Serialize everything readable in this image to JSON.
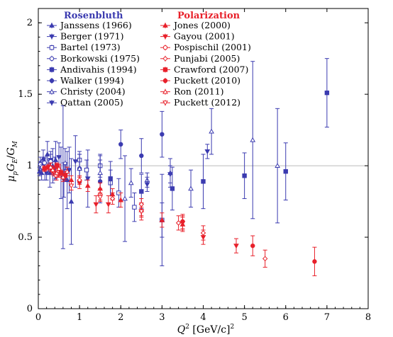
{
  "chart_data": {
    "type": "scatter",
    "xlabel": "Q² [GeV/c]²",
    "ylabel": "μpGE/GM",
    "xlim": [
      0,
      8
    ],
    "ylim": [
      0,
      2.1
    ],
    "xticks": [
      "0",
      "1",
      "2",
      "3",
      "4",
      "5",
      "6",
      "7",
      "8"
    ],
    "yticks": [
      "0",
      "0.5",
      "1",
      "1.5",
      "2"
    ],
    "reference_line": 1,
    "grid": false,
    "legend_groups": [
      {
        "title": "Rosenbluth",
        "color": "#3b3bb0",
        "series": [
          {
            "name": "Janssens (1966)",
            "marker": "triangle-up-filled",
            "points": [
              [
                0.03,
                0.96,
                0.03
              ],
              [
                0.05,
                1.02,
                0.04
              ],
              [
                0.08,
                0.95,
                0.05
              ],
              [
                0.12,
                1.05,
                0.06
              ],
              [
                0.16,
                0.98,
                0.08
              ],
              [
                0.22,
                1.08,
                0.09
              ],
              [
                0.28,
                0.95,
                0.1
              ],
              [
                0.35,
                1.0,
                0.12
              ],
              [
                0.42,
                1.04,
                0.13
              ],
              [
                0.55,
                0.95,
                0.18
              ],
              [
                0.7,
                0.9,
                0.2
              ],
              [
                0.8,
                0.75,
                0.3
              ]
            ]
          },
          {
            "name": "Berger (1971)",
            "marker": "triangle-down-filled",
            "points": [
              [
                0.1,
                1.0,
                0.03
              ],
              [
                0.2,
                0.95,
                0.05
              ],
              [
                0.3,
                1.04,
                0.06
              ],
              [
                0.4,
                0.98,
                0.08
              ],
              [
                0.5,
                1.06,
                0.1
              ],
              [
                0.62,
                0.9,
                0.12
              ],
              [
                0.75,
                0.97,
                0.16
              ],
              [
                0.9,
                1.03,
                0.18
              ],
              [
                1.2,
                0.91,
                0.2
              ]
            ]
          },
          {
            "name": "Bartel (1973)",
            "marker": "square-open",
            "points": [
              [
                0.67,
                0.96,
                0.06
              ],
              [
                1.0,
                1.04,
                0.06
              ],
              [
                1.17,
                0.97,
                0.07
              ],
              [
                1.5,
                1.0,
                0.08
              ],
              [
                1.75,
                0.88,
                0.09
              ],
              [
                1.95,
                0.81,
                0.1
              ],
              [
                2.33,
                0.71,
                0.1
              ],
              [
                3.0,
                0.62,
                0.12
              ]
            ]
          },
          {
            "name": "Borkowski (1975)",
            "marker": "circle-open",
            "points": [
              [
                0.05,
                1.01,
                0.02
              ],
              [
                0.1,
                0.99,
                0.02
              ],
              [
                0.15,
                1.02,
                0.03
              ],
              [
                0.2,
                0.97,
                0.03
              ],
              [
                0.25,
                1.0,
                0.04
              ],
              [
                0.3,
                1.03,
                0.05
              ]
            ]
          },
          {
            "name": "Andivahis (1994)",
            "marker": "square-filled",
            "points": [
              [
                1.75,
                0.91,
                0.12
              ],
              [
                2.5,
                0.82,
                0.12
              ],
              [
                3.25,
                0.84,
                0.15
              ],
              [
                4.0,
                0.89,
                0.19
              ],
              [
                5.0,
                0.93,
                0.16
              ],
              [
                6.0,
                0.96,
                0.2
              ],
              [
                7.0,
                1.51,
                0.24
              ]
            ]
          },
          {
            "name": "Walker (1994)",
            "marker": "circle-filled",
            "points": [
              [
                1.0,
                0.98,
                0.1
              ],
              [
                1.5,
                0.89,
                0.15
              ],
              [
                2.0,
                1.15,
                0.1
              ],
              [
                2.5,
                1.07,
                0.12
              ],
              [
                3.0,
                1.22,
                0.16
              ],
              [
                0.6,
                0.92,
                0.5
              ]
            ]
          },
          {
            "name": "Christy (2004)",
            "marker": "triangle-up-open",
            "points": [
              [
                0.65,
                1.02,
                0.1
              ],
              [
                1.0,
                0.98,
                0.1
              ],
              [
                1.5,
                0.95,
                0.12
              ],
              [
                2.25,
                0.88,
                0.1
              ],
              [
                2.64,
                0.9,
                0.05
              ],
              [
                3.2,
                0.95,
                0.1
              ],
              [
                3.7,
                0.84,
                0.13
              ],
              [
                4.2,
                1.24,
                0.16
              ],
              [
                5.2,
                1.18,
                0.55
              ],
              [
                5.8,
                1.0,
                0.4
              ],
              [
                3.0,
                0.62,
                0.32
              ],
              [
                2.1,
                0.77,
                0.3
              ]
            ]
          },
          {
            "name": "Qattan (2005)",
            "marker": "triangle-down-filled",
            "points": [
              [
                2.64,
                0.87,
                0.05
              ],
              [
                3.2,
                0.94,
                0.06
              ],
              [
                4.1,
                1.1,
                0.05
              ]
            ]
          }
        ]
      },
      {
        "title": "Polarization",
        "color": "#e8202a",
        "series": [
          {
            "name": "Jones (2000)",
            "marker": "triangle-up-filled",
            "points": [
              [
                0.5,
                0.98,
                0.03
              ],
              [
                0.8,
                0.9,
                0.03
              ],
              [
                1.2,
                0.86,
                0.04
              ],
              [
                1.5,
                0.84,
                0.04
              ],
              [
                1.8,
                0.8,
                0.04
              ],
              [
                2.0,
                0.76,
                0.05
              ],
              [
                2.5,
                0.69,
                0.05
              ],
              [
                3.0,
                0.62,
                0.05
              ],
              [
                3.5,
                0.59,
                0.05
              ]
            ]
          },
          {
            "name": "Gayou (2001)",
            "marker": "triangle-down-filled",
            "points": [
              [
                0.5,
                0.96,
                0.04
              ],
              [
                1.0,
                0.88,
                0.04
              ],
              [
                1.4,
                0.73,
                0.06
              ],
              [
                1.7,
                0.73,
                0.06
              ],
              [
                2.5,
                0.68,
                0.06
              ],
              [
                3.5,
                0.6,
                0.05
              ],
              [
                4.0,
                0.5,
                0.05
              ],
              [
                4.8,
                0.44,
                0.05
              ]
            ]
          },
          {
            "name": "Pospischil (2001)",
            "marker": "circle-open",
            "points": [
              [
                0.37,
                0.96,
                0.03
              ],
              [
                0.44,
                0.93,
                0.03
              ],
              [
                0.5,
                0.95,
                0.03
              ]
            ]
          },
          {
            "name": "Punjabi (2005)",
            "marker": "diamond-open",
            "points": [
              [
                0.5,
                0.96,
                0.03
              ],
              [
                1.0,
                0.9,
                0.03
              ],
              [
                1.5,
                0.8,
                0.04
              ],
              [
                1.8,
                0.77,
                0.04
              ],
              [
                2.5,
                0.73,
                0.04
              ],
              [
                3.4,
                0.6,
                0.05
              ],
              [
                4.0,
                0.53,
                0.05
              ],
              [
                5.5,
                0.35,
                0.06
              ]
            ]
          },
          {
            "name": "Crawford (2007)",
            "marker": "square-filled",
            "points": [
              [
                0.15,
                0.98,
                0.02
              ],
              [
                0.25,
                0.99,
                0.02
              ],
              [
                0.35,
                0.97,
                0.02
              ],
              [
                0.45,
                1.0,
                0.02
              ],
              [
                0.55,
                0.95,
                0.02
              ],
              [
                0.65,
                0.93,
                0.03
              ]
            ]
          },
          {
            "name": "Puckett (2010)",
            "marker": "circle-filled",
            "points": [
              [
                5.2,
                0.44,
                0.07
              ],
              [
                6.7,
                0.33,
                0.1
              ],
              [
                3.5,
                0.61,
                0.05
              ]
            ]
          },
          {
            "name": "Ron (2011)",
            "marker": "triangle-up-open",
            "points": [
              [
                0.3,
                0.99,
                0.03
              ],
              [
                0.35,
                0.97,
                0.03
              ],
              [
                0.45,
                0.95,
                0.03
              ],
              [
                0.5,
                0.98,
                0.03
              ],
              [
                0.6,
                0.92,
                0.03
              ],
              [
                0.7,
                0.96,
                0.03
              ]
            ]
          },
          {
            "name": "Puckett (2012)",
            "marker": "triangle-down-open",
            "points": [
              [
                2.5,
                0.68,
                0.03
              ],
              [
                1.5,
                0.78,
                0.03
              ],
              [
                0.8,
                0.86,
                0.03
              ]
            ]
          }
        ]
      }
    ]
  }
}
